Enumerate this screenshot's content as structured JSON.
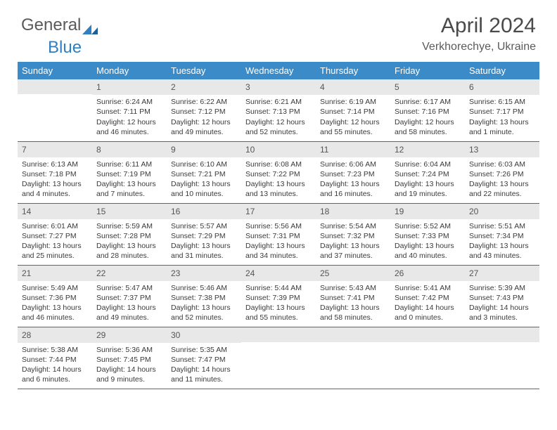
{
  "brand": {
    "part1": "General",
    "part2": "Blue"
  },
  "title": "April 2024",
  "location": "Verkhorechye, Ukraine",
  "colors": {
    "header_bg": "#3b8bc8",
    "header_text": "#ffffff",
    "row_divider": "#3b6fa0",
    "daynum_bg": "#e8e8e8",
    "text": "#3a3a3a",
    "brand_gray": "#5a5a5a",
    "brand_blue": "#2f7fc1"
  },
  "weekdays": [
    "Sunday",
    "Monday",
    "Tuesday",
    "Wednesday",
    "Thursday",
    "Friday",
    "Saturday"
  ],
  "weeks": [
    [
      {
        "num": "",
        "sunrise": "",
        "sunset": "",
        "daylight": ""
      },
      {
        "num": "1",
        "sunrise": "Sunrise: 6:24 AM",
        "sunset": "Sunset: 7:11 PM",
        "daylight": "Daylight: 12 hours and 46 minutes."
      },
      {
        "num": "2",
        "sunrise": "Sunrise: 6:22 AM",
        "sunset": "Sunset: 7:12 PM",
        "daylight": "Daylight: 12 hours and 49 minutes."
      },
      {
        "num": "3",
        "sunrise": "Sunrise: 6:21 AM",
        "sunset": "Sunset: 7:13 PM",
        "daylight": "Daylight: 12 hours and 52 minutes."
      },
      {
        "num": "4",
        "sunrise": "Sunrise: 6:19 AM",
        "sunset": "Sunset: 7:14 PM",
        "daylight": "Daylight: 12 hours and 55 minutes."
      },
      {
        "num": "5",
        "sunrise": "Sunrise: 6:17 AM",
        "sunset": "Sunset: 7:16 PM",
        "daylight": "Daylight: 12 hours and 58 minutes."
      },
      {
        "num": "6",
        "sunrise": "Sunrise: 6:15 AM",
        "sunset": "Sunset: 7:17 PM",
        "daylight": "Daylight: 13 hours and 1 minute."
      }
    ],
    [
      {
        "num": "7",
        "sunrise": "Sunrise: 6:13 AM",
        "sunset": "Sunset: 7:18 PM",
        "daylight": "Daylight: 13 hours and 4 minutes."
      },
      {
        "num": "8",
        "sunrise": "Sunrise: 6:11 AM",
        "sunset": "Sunset: 7:19 PM",
        "daylight": "Daylight: 13 hours and 7 minutes."
      },
      {
        "num": "9",
        "sunrise": "Sunrise: 6:10 AM",
        "sunset": "Sunset: 7:21 PM",
        "daylight": "Daylight: 13 hours and 10 minutes."
      },
      {
        "num": "10",
        "sunrise": "Sunrise: 6:08 AM",
        "sunset": "Sunset: 7:22 PM",
        "daylight": "Daylight: 13 hours and 13 minutes."
      },
      {
        "num": "11",
        "sunrise": "Sunrise: 6:06 AM",
        "sunset": "Sunset: 7:23 PM",
        "daylight": "Daylight: 13 hours and 16 minutes."
      },
      {
        "num": "12",
        "sunrise": "Sunrise: 6:04 AM",
        "sunset": "Sunset: 7:24 PM",
        "daylight": "Daylight: 13 hours and 19 minutes."
      },
      {
        "num": "13",
        "sunrise": "Sunrise: 6:03 AM",
        "sunset": "Sunset: 7:26 PM",
        "daylight": "Daylight: 13 hours and 22 minutes."
      }
    ],
    [
      {
        "num": "14",
        "sunrise": "Sunrise: 6:01 AM",
        "sunset": "Sunset: 7:27 PM",
        "daylight": "Daylight: 13 hours and 25 minutes."
      },
      {
        "num": "15",
        "sunrise": "Sunrise: 5:59 AM",
        "sunset": "Sunset: 7:28 PM",
        "daylight": "Daylight: 13 hours and 28 minutes."
      },
      {
        "num": "16",
        "sunrise": "Sunrise: 5:57 AM",
        "sunset": "Sunset: 7:29 PM",
        "daylight": "Daylight: 13 hours and 31 minutes."
      },
      {
        "num": "17",
        "sunrise": "Sunrise: 5:56 AM",
        "sunset": "Sunset: 7:31 PM",
        "daylight": "Daylight: 13 hours and 34 minutes."
      },
      {
        "num": "18",
        "sunrise": "Sunrise: 5:54 AM",
        "sunset": "Sunset: 7:32 PM",
        "daylight": "Daylight: 13 hours and 37 minutes."
      },
      {
        "num": "19",
        "sunrise": "Sunrise: 5:52 AM",
        "sunset": "Sunset: 7:33 PM",
        "daylight": "Daylight: 13 hours and 40 minutes."
      },
      {
        "num": "20",
        "sunrise": "Sunrise: 5:51 AM",
        "sunset": "Sunset: 7:34 PM",
        "daylight": "Daylight: 13 hours and 43 minutes."
      }
    ],
    [
      {
        "num": "21",
        "sunrise": "Sunrise: 5:49 AM",
        "sunset": "Sunset: 7:36 PM",
        "daylight": "Daylight: 13 hours and 46 minutes."
      },
      {
        "num": "22",
        "sunrise": "Sunrise: 5:47 AM",
        "sunset": "Sunset: 7:37 PM",
        "daylight": "Daylight: 13 hours and 49 minutes."
      },
      {
        "num": "23",
        "sunrise": "Sunrise: 5:46 AM",
        "sunset": "Sunset: 7:38 PM",
        "daylight": "Daylight: 13 hours and 52 minutes."
      },
      {
        "num": "24",
        "sunrise": "Sunrise: 5:44 AM",
        "sunset": "Sunset: 7:39 PM",
        "daylight": "Daylight: 13 hours and 55 minutes."
      },
      {
        "num": "25",
        "sunrise": "Sunrise: 5:43 AM",
        "sunset": "Sunset: 7:41 PM",
        "daylight": "Daylight: 13 hours and 58 minutes."
      },
      {
        "num": "26",
        "sunrise": "Sunrise: 5:41 AM",
        "sunset": "Sunset: 7:42 PM",
        "daylight": "Daylight: 14 hours and 0 minutes."
      },
      {
        "num": "27",
        "sunrise": "Sunrise: 5:39 AM",
        "sunset": "Sunset: 7:43 PM",
        "daylight": "Daylight: 14 hours and 3 minutes."
      }
    ],
    [
      {
        "num": "28",
        "sunrise": "Sunrise: 5:38 AM",
        "sunset": "Sunset: 7:44 PM",
        "daylight": "Daylight: 14 hours and 6 minutes."
      },
      {
        "num": "29",
        "sunrise": "Sunrise: 5:36 AM",
        "sunset": "Sunset: 7:45 PM",
        "daylight": "Daylight: 14 hours and 9 minutes."
      },
      {
        "num": "30",
        "sunrise": "Sunrise: 5:35 AM",
        "sunset": "Sunset: 7:47 PM",
        "daylight": "Daylight: 14 hours and 11 minutes."
      },
      {
        "num": "",
        "sunrise": "",
        "sunset": "",
        "daylight": ""
      },
      {
        "num": "",
        "sunrise": "",
        "sunset": "",
        "daylight": ""
      },
      {
        "num": "",
        "sunrise": "",
        "sunset": "",
        "daylight": ""
      },
      {
        "num": "",
        "sunrise": "",
        "sunset": "",
        "daylight": ""
      }
    ]
  ]
}
